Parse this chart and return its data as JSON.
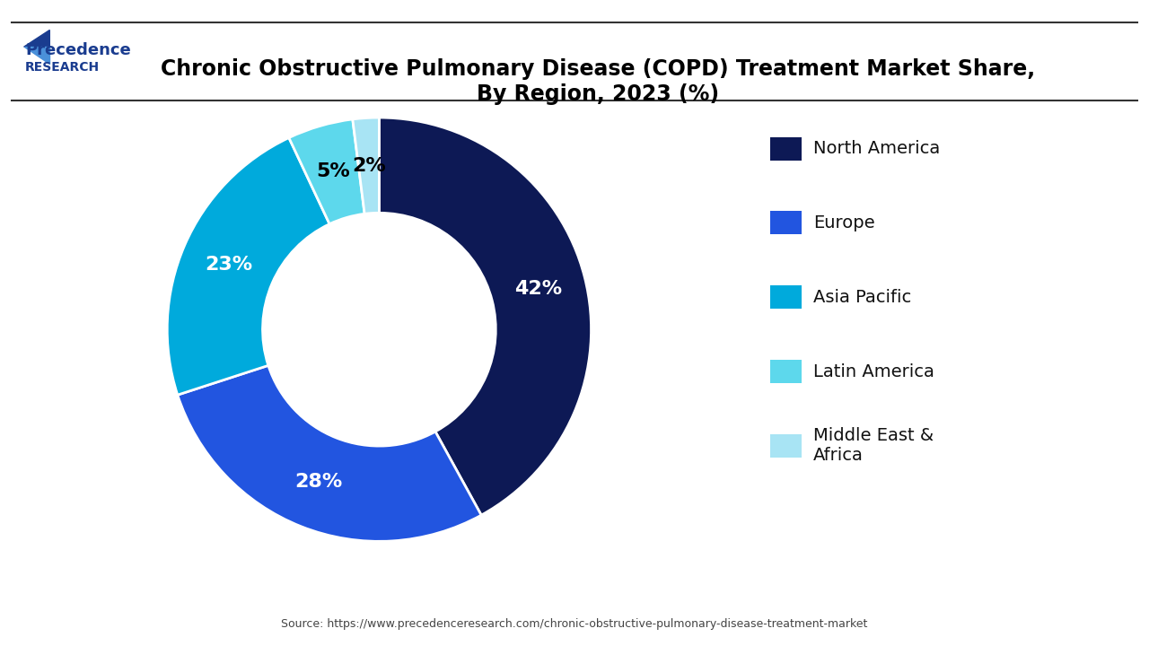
{
  "title": "Chronic Obstructive Pulmonary Disease (COPD) Treatment Market Share,\nBy Region, 2023 (%)",
  "values": [
    42,
    28,
    23,
    5,
    2
  ],
  "colors": [
    "#0d1955",
    "#2255e0",
    "#00aadc",
    "#5dd8ec",
    "#a8e4f4"
  ],
  "pct_labels": [
    "42%",
    "28%",
    "23%",
    "5%",
    "2%"
  ],
  "pct_colors": [
    "white",
    "white",
    "white",
    "black",
    "black"
  ],
  "source_text": "Source: https://www.precedenceresearch.com/chronic-obstructive-pulmonary-disease-treatment-market",
  "bg_color": "#ffffff",
  "title_color": "#000000",
  "legend_labels": [
    "North America",
    "Europe",
    "Asia Pacific",
    "Latin America",
    "Middle East &\nAfrica"
  ]
}
